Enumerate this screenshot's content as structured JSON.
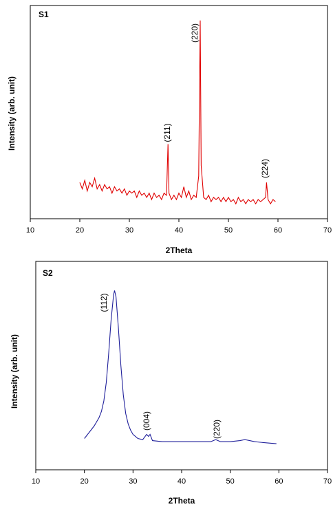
{
  "chart_data": [
    {
      "type": "line",
      "title": "S1",
      "x_label": "2Theta",
      "y_label": "Intensity (arb. unit)",
      "color": "#e00000",
      "xlim": [
        10,
        70
      ],
      "xticks": [
        10,
        20,
        30,
        40,
        50,
        60,
        70
      ],
      "ylim": [
        0,
        100
      ],
      "annotations": [
        "(220)",
        "(211)",
        "(224)"
      ],
      "x": [
        20,
        20.5,
        21,
        21.5,
        22,
        22.5,
        23,
        23.5,
        24,
        24.5,
        25,
        25.5,
        26,
        26.5,
        27,
        27.5,
        28,
        28.5,
        29,
        29.5,
        30,
        30.5,
        31,
        31.5,
        32,
        32.5,
        33,
        33.5,
        34,
        34.5,
        35,
        35.5,
        36,
        36.5,
        37,
        37.5,
        37.8,
        38,
        38.5,
        39,
        39.5,
        40,
        40.5,
        41,
        41.5,
        42,
        42.5,
        43,
        43.5,
        44,
        44.3,
        44.5,
        45,
        45.5,
        46,
        46.5,
        47,
        47.5,
        48,
        48.5,
        49,
        49.5,
        50,
        50.5,
        51,
        51.5,
        52,
        52.5,
        53,
        53.5,
        54,
        54.5,
        55,
        55.5,
        56,
        56.5,
        57,
        57.5,
        57.7,
        58,
        58.5,
        59,
        59.5
      ],
      "values": [
        17,
        14,
        18,
        13,
        17,
        15,
        19,
        14,
        16,
        13,
        16,
        14,
        15,
        12,
        15,
        13,
        14,
        12,
        14,
        11,
        13,
        12,
        13,
        10,
        13,
        11,
        12,
        10,
        12,
        9,
        12,
        10,
        11,
        9,
        12,
        11,
        35,
        12,
        9,
        11,
        9,
        12,
        10,
        15,
        10,
        13,
        9,
        11,
        10,
        20,
        93,
        25,
        10,
        9,
        11,
        8,
        10,
        9,
        10,
        8,
        10,
        8,
        10,
        8,
        9,
        7,
        10,
        8,
        9,
        7,
        9,
        8,
        9,
        7,
        9,
        8,
        9,
        10,
        17,
        9,
        7,
        9,
        8
      ]
    },
    {
      "type": "line",
      "title": "S2",
      "x_label": "2Theta",
      "y_label": "Intensity (arb. unit)",
      "color": "#1f1f9a",
      "xlim": [
        10,
        70
      ],
      "xticks": [
        10,
        20,
        30,
        40,
        50,
        60,
        70
      ],
      "ylim": [
        0,
        100
      ],
      "annotations": [
        "(112)",
        "(004)",
        "(220)"
      ],
      "x": [
        20,
        21,
        22,
        23,
        23.5,
        24,
        24.5,
        25,
        25.5,
        26,
        26.2,
        26.5,
        27,
        27.5,
        28,
        28.5,
        29,
        29.5,
        30,
        31,
        32,
        32.8,
        33.2,
        33.5,
        34,
        36,
        40,
        44,
        46,
        47,
        48,
        50,
        52,
        53,
        55,
        57,
        59.5
      ],
      "values": [
        15,
        18,
        21,
        25,
        28,
        33,
        42,
        56,
        72,
        84,
        86,
        83,
        68,
        50,
        36,
        27,
        22,
        19,
        17,
        15,
        14.5,
        17,
        16,
        17,
        14,
        13.5,
        13.5,
        13.5,
        13.5,
        14.5,
        13.5,
        13.5,
        14,
        14.5,
        13.5,
        13,
        12.5
      ]
    }
  ]
}
